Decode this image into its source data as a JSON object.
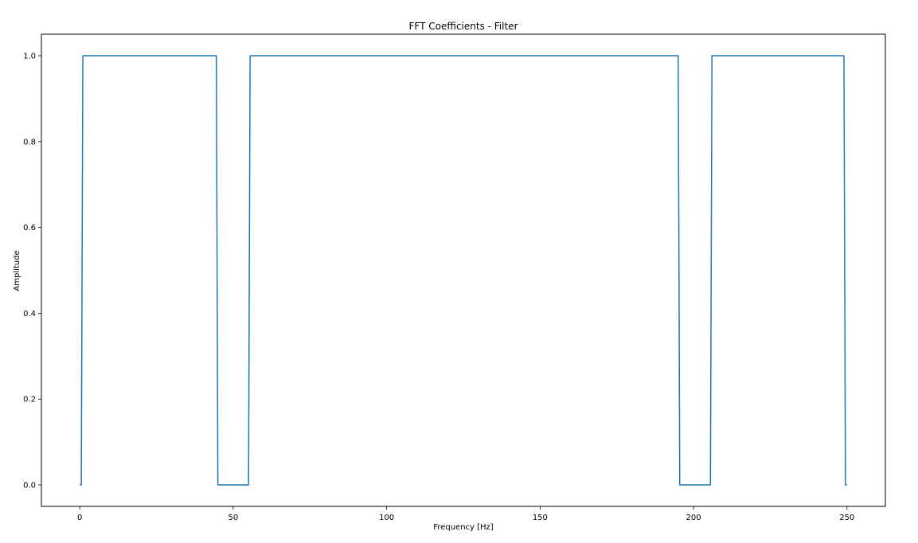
{
  "chart_data": {
    "type": "line",
    "title": "FFT Coefficients - Filter",
    "xlabel": "Frequency [Hz]",
    "ylabel": "Amplitude",
    "xlim": [
      -12.5,
      262.5
    ],
    "ylim": [
      -0.05,
      1.05
    ],
    "xticks": [
      0,
      50,
      100,
      150,
      200,
      250
    ],
    "xtick_labels": [
      "0",
      "50",
      "100",
      "150",
      "200",
      "250"
    ],
    "yticks": [
      0.0,
      0.2,
      0.4,
      0.6,
      0.8,
      1.0
    ],
    "ytick_labels": [
      "0.0",
      "0.2",
      "0.4",
      "0.6",
      "0.8",
      "1.0"
    ],
    "grid": false,
    "series": [
      {
        "color": "#1f77b4",
        "x": [
          0,
          0.5,
          1.0,
          44.5,
          45.0,
          55.0,
          55.5,
          195.0,
          195.5,
          205.5,
          206.0,
          249.0,
          249.5,
          250.0
        ],
        "y": [
          0,
          0,
          1,
          1,
          0,
          0,
          1,
          1,
          0,
          0,
          1,
          1,
          0,
          0
        ]
      }
    ]
  }
}
